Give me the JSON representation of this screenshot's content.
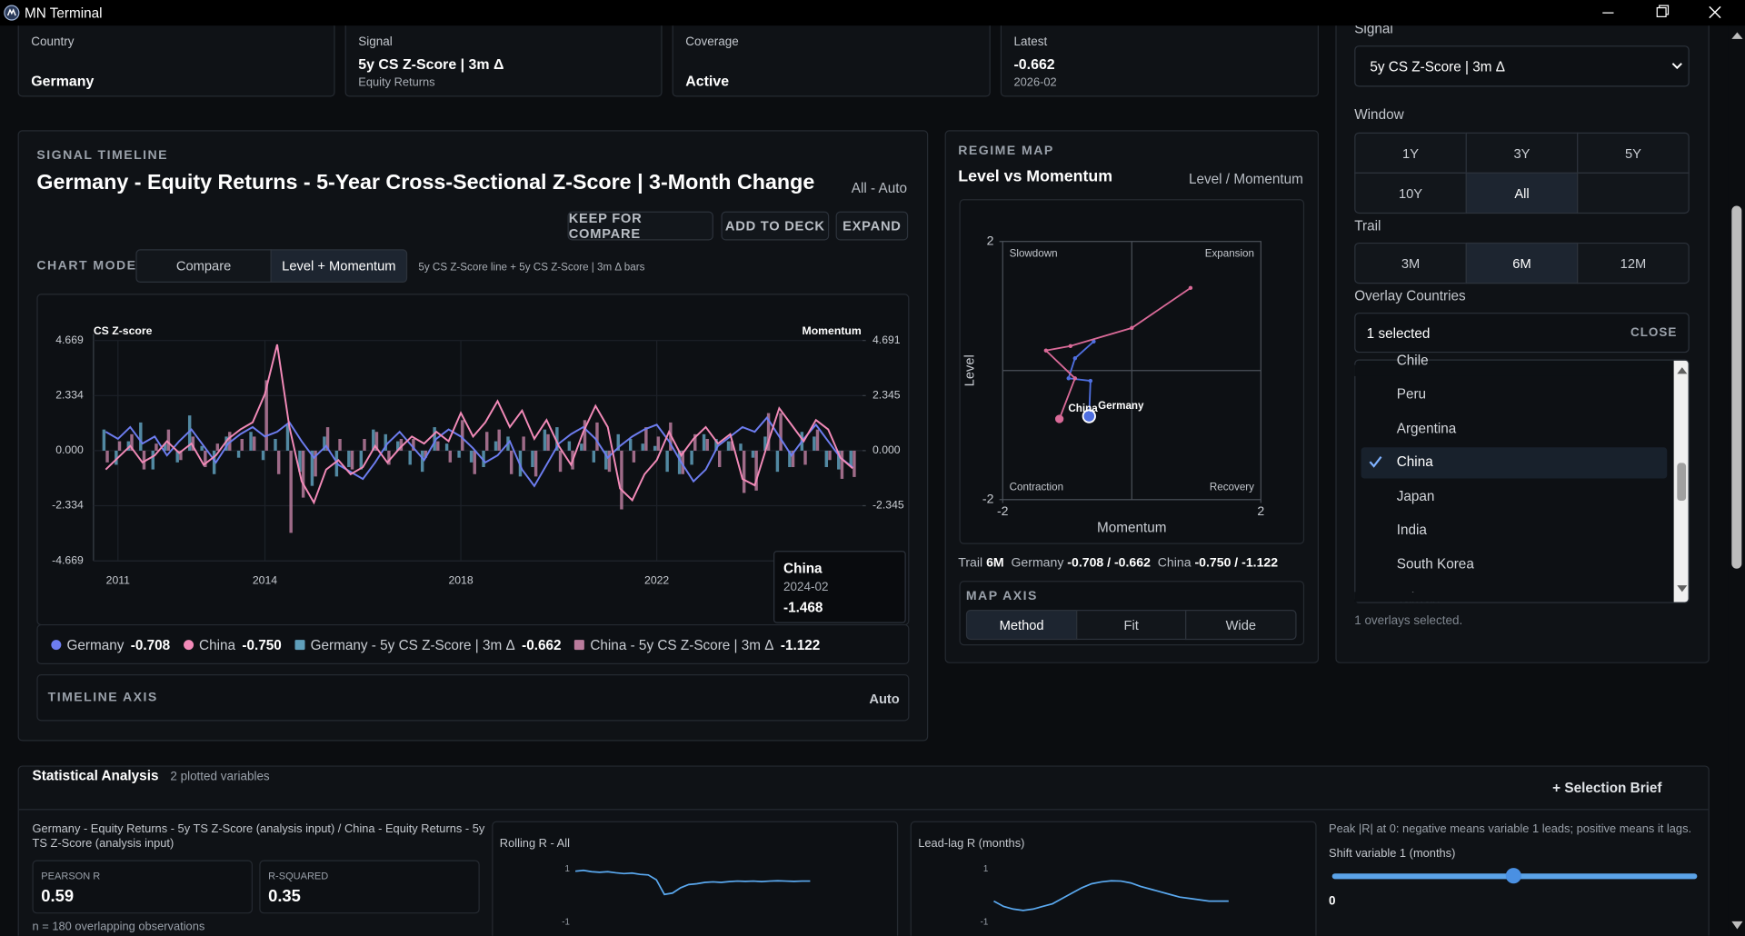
{
  "window": {
    "title": "MN Terminal"
  },
  "summary": [
    {
      "label": "Country",
      "value": "Germany"
    },
    {
      "label": "Signal",
      "value": "5y CS Z-Score | 3m Δ",
      "sub": "Equity Returns"
    },
    {
      "label": "Coverage",
      "value": "Active"
    },
    {
      "label": "Latest",
      "value": -0.662,
      "sub": "2026-02"
    }
  ],
  "timeline": {
    "section_label": "SIGNAL TIMELINE",
    "range_label": "All - Auto",
    "buttons": [
      "KEEP FOR COMPARE",
      "ADD TO DECK",
      "EXPAND"
    ],
    "chart_mode_label": "CHART MODE",
    "modes": [
      "Compare",
      "Level + Momentum"
    ],
    "mode_hint": "5y CS Z-Score line + 5y CS Z-Score | 3m Δ bars",
    "axis_label": "TIMELINE AXIS",
    "axis_value": "Auto"
  },
  "regime": {
    "section_label": "REGIME MAP",
    "trail_label": "Trail",
    "trail_value": "6M",
    "footer": [
      {
        "name": "Germany",
        "value": "-0.708 / -0.662"
      },
      {
        "name": "China",
        "value": "-0.750 / -1.122"
      }
    ],
    "axis_label": "MAP AXIS",
    "axis_options": [
      "Method",
      "Fit",
      "Wide"
    ]
  },
  "controls": {
    "signal_label": "Signal",
    "signal_value": "5y CS Z-Score | 3m Δ",
    "window_label": "Window",
    "window_options": [
      "1Y",
      "3Y",
      "5Y",
      "10Y",
      "All"
    ],
    "trail_label": "Trail",
    "trail_options": [
      "3M",
      "6M",
      "12M"
    ],
    "overlay_label": "Overlay Countries",
    "overlay_summary": "1 selected",
    "close": "CLOSE",
    "countries": [
      "Chile",
      "Peru",
      "Argentina",
      "China",
      "Japan",
      "India",
      "South Korea",
      "Taiwan"
    ],
    "overlay_note": "1 overlays selected."
  },
  "stats": {
    "title": "Statistical Analysis",
    "subtitle": "2 plotted variables",
    "brief": "+ Selection Brief",
    "description": "Germany - Equity Returns - 5y TS Z-Score (analysis input) / China - Equity Returns - 5y TS Z-Score (analysis input)",
    "pearson_label": "PEARSON R",
    "pearson": 0.59,
    "r2_label": "R-SQUARED",
    "r2": 0.35,
    "n_note": "n = 180 overlapping observations",
    "lag_note": "Peak |R| at 0: negative means variable 1 leads; positive means it lags.",
    "shift_label": "Shift variable 1 (months)",
    "shift_value": 0
  },
  "chart_data": [
    {
      "type": "combo",
      "title": "Germany - Equity Returns - 5-Year Cross-Sectional Z-Score | 3-Month Change",
      "y_label": "CS Z-score",
      "y2_label": "Momentum",
      "xlim": [
        2010.5,
        2026.2
      ],
      "xticks": [
        2011,
        2014,
        2018,
        2022
      ],
      "ylim": [
        -4.669,
        4.669
      ],
      "yticks": [
        4.669,
        2.334,
        {
          "value": 0,
          "label": "0.000"
        },
        -2.334,
        -4.669
      ],
      "y2lim": [
        -4.691,
        4.691
      ],
      "y2ticks": [
        4.691,
        2.345,
        {
          "value": 0,
          "label": "0.000"
        },
        -2.345
      ],
      "grid": true,
      "x": [
        2010.75,
        2011,
        2011.25,
        2011.5,
        2011.75,
        2012,
        2012.25,
        2012.5,
        2012.75,
        2013,
        2013.25,
        2013.5,
        2013.75,
        2014,
        2014.25,
        2014.5,
        2014.75,
        2015,
        2015.25,
        2015.5,
        2015.75,
        2016,
        2016.25,
        2016.5,
        2016.75,
        2017,
        2017.25,
        2017.5,
        2017.75,
        2018,
        2018.25,
        2018.5,
        2018.75,
        2019,
        2019.25,
        2019.5,
        2019.75,
        2020,
        2020.25,
        2020.5,
        2020.75,
        2021,
        2021.25,
        2021.5,
        2021.75,
        2022,
        2022.25,
        2022.5,
        2022.75,
        2023,
        2023.25,
        2023.5,
        2023.75,
        2024,
        2024.25,
        2024.5,
        2024.75,
        2025,
        2025.25,
        2025.5,
        2025.75,
        2026
      ],
      "series": [
        {
          "name": "Germany",
          "color": "#6d7df0",
          "legend_value": "-0.708",
          "values": [
            0.8,
            0.5,
            1.0,
            0.3,
            0.6,
            -0.2,
            0.4,
            0.9,
            0.2,
            -0.5,
            0.3,
            0.7,
            1.0,
            0.6,
            0.8,
            1.2,
            0.4,
            -0.3,
            0.2,
            -0.6,
            -0.9,
            -1.2,
            -0.5,
            0.3,
            0.8,
            0.2,
            -0.4,
            0.5,
            0.9,
            0.6,
            0.1,
            -0.5,
            -0.2,
            0.4,
            -0.8,
            -1.5,
            -0.6,
            0.3,
            0.7,
            1.0,
            0.5,
            -0.3,
            0.2,
            0.6,
            0.9,
            1.1,
            0.4,
            -0.5,
            -1.3,
            -0.8,
            0.2,
            0.6,
            1.0,
            0.8,
            1.4,
            0.6,
            -0.2,
            0.5,
            1.1,
            0.4,
            -0.3,
            -0.708
          ]
        },
        {
          "name": "China",
          "color": "#f28ab8",
          "legend_value": "-0.750",
          "values": [
            -0.8,
            -0.3,
            0.2,
            -0.5,
            -0.2,
            0.4,
            -0.1,
            0.3,
            -0.6,
            -0.2,
            0.5,
            0.9,
            1.2,
            2.4,
            4.5,
            1.0,
            -1.3,
            -2.2,
            -0.8,
            -0.4,
            -1.0,
            -0.7,
            0.2,
            -0.5,
            0.1,
            0.6,
            0.3,
            0.8,
            0.4,
            1.6,
            0.6,
            1.2,
            2.1,
            1.0,
            1.7,
            0.5,
            1.3,
            0.2,
            -0.6,
            0.8,
            1.9,
            1.0,
            -1.6,
            -2.1,
            -1.0,
            -0.4,
            0.8,
            -0.2,
            0.5,
            1.0,
            0.3,
            0.7,
            -1.2,
            -1.468,
            0.2,
            1.8,
            1.1,
            0.4,
            1.3,
            0.9,
            -0.3,
            -0.75
          ]
        },
        {
          "name": "Germany - 5y CS Z-Score | 3m Δ",
          "color": "#5f9fbb",
          "axis": "y2",
          "legend_value": "-0.662",
          "values": [
            0.9,
            -0.6,
            0.4,
            1.2,
            -0.8,
            0.3,
            -0.5,
            1.5,
            0.2,
            -1.0,
            0.6,
            -0.3,
            0.8,
            -0.4,
            0.5,
            1.1,
            -0.9,
            -1.5,
            0.6,
            -1.1,
            -0.7,
            -0.8,
            0.9,
            0.7,
            0.4,
            -0.6,
            -0.9,
            1.0,
            0.3,
            -0.3,
            -0.5,
            -0.7,
            0.4,
            0.6,
            -1.1,
            -0.7,
            0.9,
            1.0,
            0.4,
            0.3,
            -0.5,
            -0.8,
            0.7,
            0.5,
            0.3,
            0.2,
            -0.9,
            -1.0,
            -0.6,
            0.7,
            0.5,
            0.4,
            0.3,
            -0.3,
            0.6,
            -0.9,
            -0.7,
            0.8,
            0.6,
            -0.7,
            -0.8,
            -0.662
          ]
        },
        {
          "name": "China - 5y CS Z-Score | 3m Δ",
          "color": "#b97b9c",
          "axis": "y2",
          "legend_value": "-1.122",
          "values": [
            -0.5,
            0.4,
            0.7,
            -0.8,
            0.3,
            0.9,
            -0.4,
            0.6,
            -0.7,
            0.3,
            0.8,
            0.5,
            0.6,
            3.0,
            -1.0,
            -3.5,
            -2.0,
            -1.1,
            1.0,
            0.5,
            -0.8,
            0.5,
            0.8,
            -0.6,
            0.5,
            0.5,
            -0.3,
            0.4,
            -0.5,
            1.3,
            -1.0,
            0.8,
            0.9,
            -1.0,
            0.6,
            -1.1,
            0.7,
            -0.9,
            -0.8,
            1.3,
            1.2,
            -0.9,
            -2.5,
            -0.5,
            1.0,
            0.6,
            1.2,
            -1.0,
            0.7,
            0.5,
            -0.7,
            0.4,
            -1.8,
            -1.7,
            1.6,
            1.6,
            -0.7,
            -0.6,
            0.9,
            -0.4,
            -1.2,
            -1.122
          ]
        }
      ],
      "tooltip": {
        "title": "China",
        "date": "2024-02",
        "value": -1.468
      }
    },
    {
      "type": "scatter",
      "title": "Level vs Momentum",
      "subtitle": "Level / Momentum",
      "x_label": "Momentum",
      "y_label": "Level",
      "xlim": [
        -2,
        2
      ],
      "ylim": [
        -2,
        2
      ],
      "xticks": [
        -2,
        2
      ],
      "yticks": [
        2,
        -2
      ],
      "quadrants": [
        "Slowdown",
        "Expansion",
        "Contraction",
        "Recovery"
      ],
      "series": [
        {
          "name": "Germany",
          "color": "#4f6fe0",
          "x": [
            -0.59,
            -0.88,
            -0.98,
            -0.64,
            -0.662
          ],
          "y": [
            0.45,
            0.19,
            -0.12,
            -0.16,
            -0.708
          ]
        },
        {
          "name": "China",
          "color": "#d96a98",
          "x": [
            0.91,
            0,
            -0.95,
            -1.33,
            -0.88,
            -1.122
          ],
          "y": [
            1.28,
            0.66,
            0.38,
            0.31,
            -0.12,
            -0.75
          ]
        }
      ]
    },
    {
      "type": "line",
      "title": "Rolling R - All",
      "ylim": [
        -1,
        1
      ],
      "yticks": [
        1,
        -1
      ],
      "color": "#5aa9f0",
      "values": [
        0.92,
        0.95,
        0.9,
        0.88,
        0.9,
        0.86,
        0.83,
        0.85,
        0.8,
        0.78,
        0.6,
        0.05,
        0.1,
        0.3,
        0.42,
        0.45,
        0.5,
        0.52,
        0.5,
        0.53,
        0.55,
        0.54,
        0.55,
        0.53,
        0.55,
        0.56,
        0.55,
        0.54,
        0.55,
        0.55
      ]
    },
    {
      "type": "line",
      "title": "Lead-lag R (months)",
      "ylim": [
        -1,
        1
      ],
      "yticks": [
        1,
        -1
      ],
      "color": "#5aa9f0",
      "values": [
        -0.2,
        -0.4,
        -0.5,
        -0.55,
        -0.5,
        -0.4,
        -0.3,
        -0.1,
        0.1,
        0.3,
        0.45,
        0.52,
        0.56,
        0.55,
        0.48,
        0.35,
        0.25,
        0.15,
        0.05,
        -0.05,
        -0.1,
        -0.15,
        -0.2,
        -0.2,
        -0.2
      ]
    }
  ]
}
